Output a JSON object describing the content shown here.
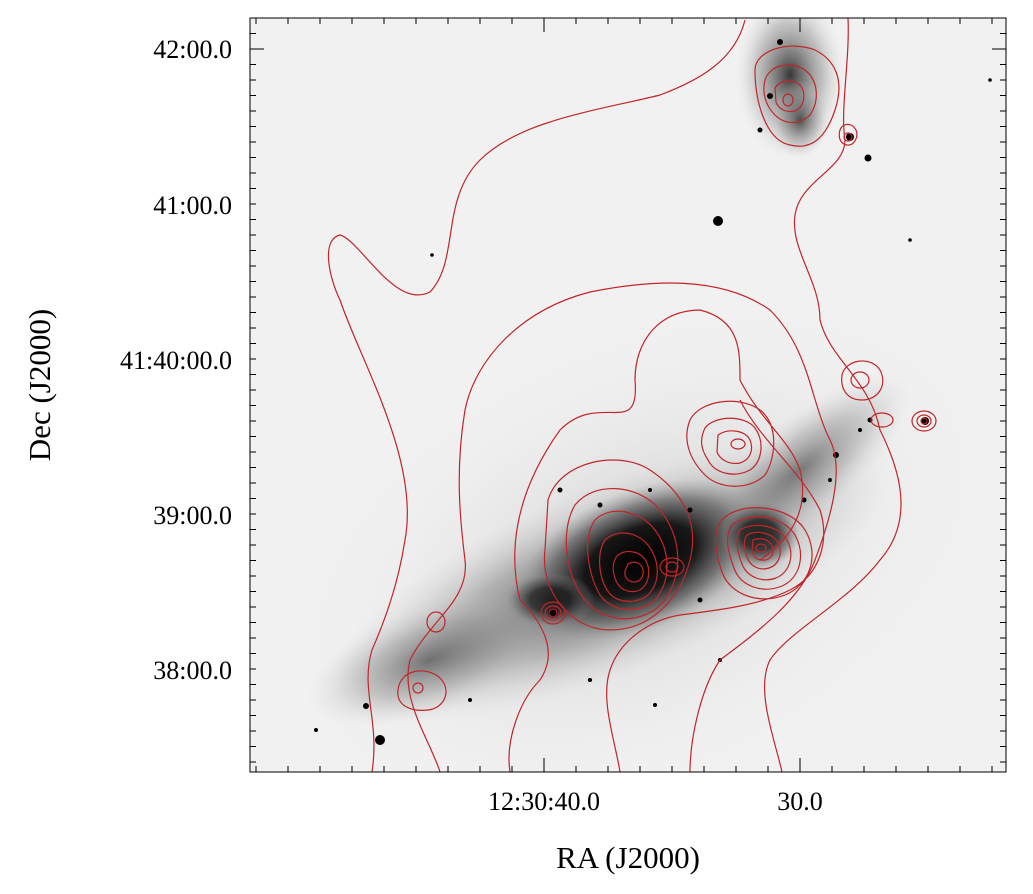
{
  "figure": {
    "x_axis_label": "RA (J2000)",
    "y_axis_label": "Dec (J2000)",
    "x_ticks": [
      "12:30:40.0",
      "30.0"
    ],
    "y_ticks": [
      "42:00.0",
      "41:00.0",
      "41:40:00.0",
      "39:00.0",
      "38:00.0"
    ],
    "contour_color": "#c0262a",
    "image_colormap": "inverted grayscale"
  }
}
